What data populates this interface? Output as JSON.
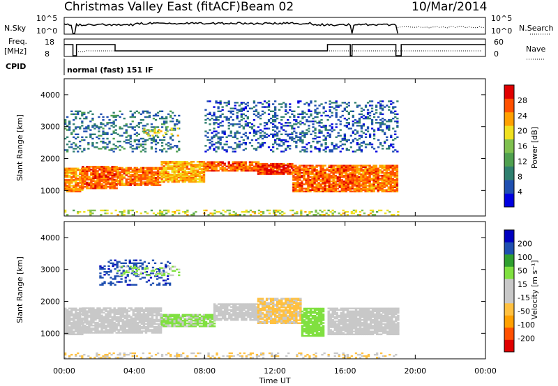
{
  "header": {
    "title": "Christmas Valley East (fitACF)",
    "beam": "Beam 02",
    "date": "10/Mar/2014"
  },
  "top_panels": {
    "nsky_label": "N.Sky",
    "nsearch_label": "N.Search",
    "noise_ticks_left": [
      "10^5",
      "10^0"
    ],
    "noise_ticks_right": [
      "10^5",
      "10^0"
    ],
    "freq_label_1": "Freq.",
    "freq_label_2": "[MHz]",
    "freq_ticks": [
      "18",
      "8"
    ],
    "nave_label": "Nave",
    "nave_ticks": [
      "60",
      "0"
    ],
    "cpid_label": "CPID",
    "cpid_value": "normal (fast) 151 IF"
  },
  "colors": {
    "power": [
      "#0000e0",
      "#1f4fb0",
      "#2f7f6f",
      "#4fa04f",
      "#7fc04f",
      "#f0e020",
      "#ffa000",
      "#ff5000",
      "#e00000"
    ],
    "velocity": [
      "#e00000",
      "#ff5000",
      "#ffa000",
      "#ffc040",
      "#c8c8c8",
      "#c8c8c8",
      "#80e040",
      "#2f9f2f",
      "#1f4fb0",
      "#0000c0"
    ]
  },
  "chart_data": [
    {
      "type": "heatmap",
      "title": "",
      "ylabel": "Slant Range [km]",
      "xlabel": "",
      "ylim": [
        200,
        4500
      ],
      "yticks": [
        "1000",
        "2000",
        "3000",
        "4000"
      ],
      "colorbar_label": "Power [dB]",
      "colorbar_ticks": [
        "4",
        "8",
        "12",
        "16",
        "20",
        "24",
        "28"
      ],
      "colorbar_range": [
        0,
        32
      ],
      "bands": [
        {
          "t0": 0.0,
          "t1": 1.0,
          "r0": 950,
          "r1": 1700,
          "level": 24
        },
        {
          "t0": 1.0,
          "t1": 3.0,
          "r0": 1050,
          "r1": 1750,
          "level": 26
        },
        {
          "t0": 3.0,
          "t1": 5.5,
          "r0": 1150,
          "r1": 1700,
          "level": 25
        },
        {
          "t0": 5.5,
          "t1": 8.0,
          "r0": 1250,
          "r1": 1900,
          "level": 22
        },
        {
          "t0": 8.0,
          "t1": 11.0,
          "r0": 1600,
          "r1": 1900,
          "level": 26
        },
        {
          "t0": 11.0,
          "t1": 13.0,
          "r0": 1500,
          "r1": 1850,
          "level": 28
        },
        {
          "t0": 13.0,
          "t1": 16.5,
          "r0": 950,
          "r1": 1800,
          "level": 26
        },
        {
          "t0": 16.5,
          "t1": 19.0,
          "r0": 950,
          "r1": 1800,
          "level": 25
        }
      ],
      "scatter_regions": [
        {
          "t0": 0.0,
          "t1": 6.5,
          "r0": 2200,
          "r1": 3500,
          "level": 8
        },
        {
          "t0": 4.5,
          "t1": 6.5,
          "r0": 2700,
          "r1": 3000,
          "level": 20
        },
        {
          "t0": 8.0,
          "t1": 19.0,
          "r0": 2200,
          "r1": 3800,
          "level": 6
        }
      ],
      "floor_noise": {
        "t0": 0.0,
        "t1": 19.0,
        "r0": 220,
        "r1": 400,
        "level": 18
      }
    },
    {
      "type": "heatmap",
      "title": "",
      "ylabel": "Slant Range [km]",
      "xlabel": "Time UT",
      "ylim": [
        200,
        4500
      ],
      "yticks": [
        "1000",
        "2000",
        "3000",
        "4000"
      ],
      "xticks": [
        "00:00",
        "04:00",
        "08:00",
        "12:00",
        "16:00",
        "20:00",
        "00:00"
      ],
      "xrange_hours": [
        0,
        24
      ],
      "colorbar_label": "Velocity [m s⁻¹]",
      "colorbar_ticks": [
        "200",
        "100",
        "50",
        "15",
        "-15",
        "-50",
        "-100",
        "-200"
      ],
      "colorbar_range": [
        -250,
        250
      ],
      "bands": [
        {
          "t0": 0.0,
          "t1": 1.0,
          "r0": 950,
          "r1": 1800,
          "vel": 0
        },
        {
          "t0": 1.0,
          "t1": 5.5,
          "r0": 1000,
          "r1": 1800,
          "vel": 0
        },
        {
          "t0": 5.5,
          "t1": 8.5,
          "r0": 1200,
          "r1": 1600,
          "vel": 60
        },
        {
          "t0": 8.5,
          "t1": 11.0,
          "r0": 1400,
          "r1": 1900,
          "vel": 20
        },
        {
          "t0": 11.0,
          "t1": 13.5,
          "r0": 1300,
          "r1": 2100,
          "vel": -60
        },
        {
          "t0": 13.5,
          "t1": 14.8,
          "r0": 900,
          "r1": 1800,
          "vel": 70
        },
        {
          "t0": 15.0,
          "t1": 19.0,
          "r0": 950,
          "r1": 1800,
          "vel": 0
        }
      ],
      "scatter_regions": [
        {
          "t0": 2.0,
          "t1": 6.0,
          "r0": 2500,
          "r1": 3300,
          "vel": 180
        },
        {
          "t0": 3.0,
          "t1": 6.5,
          "r0": 2800,
          "r1": 3100,
          "vel": 60
        },
        {
          "t0": 0.0,
          "t1": 19.0,
          "r0": 220,
          "r1": 400,
          "vel": -50
        }
      ]
    }
  ]
}
